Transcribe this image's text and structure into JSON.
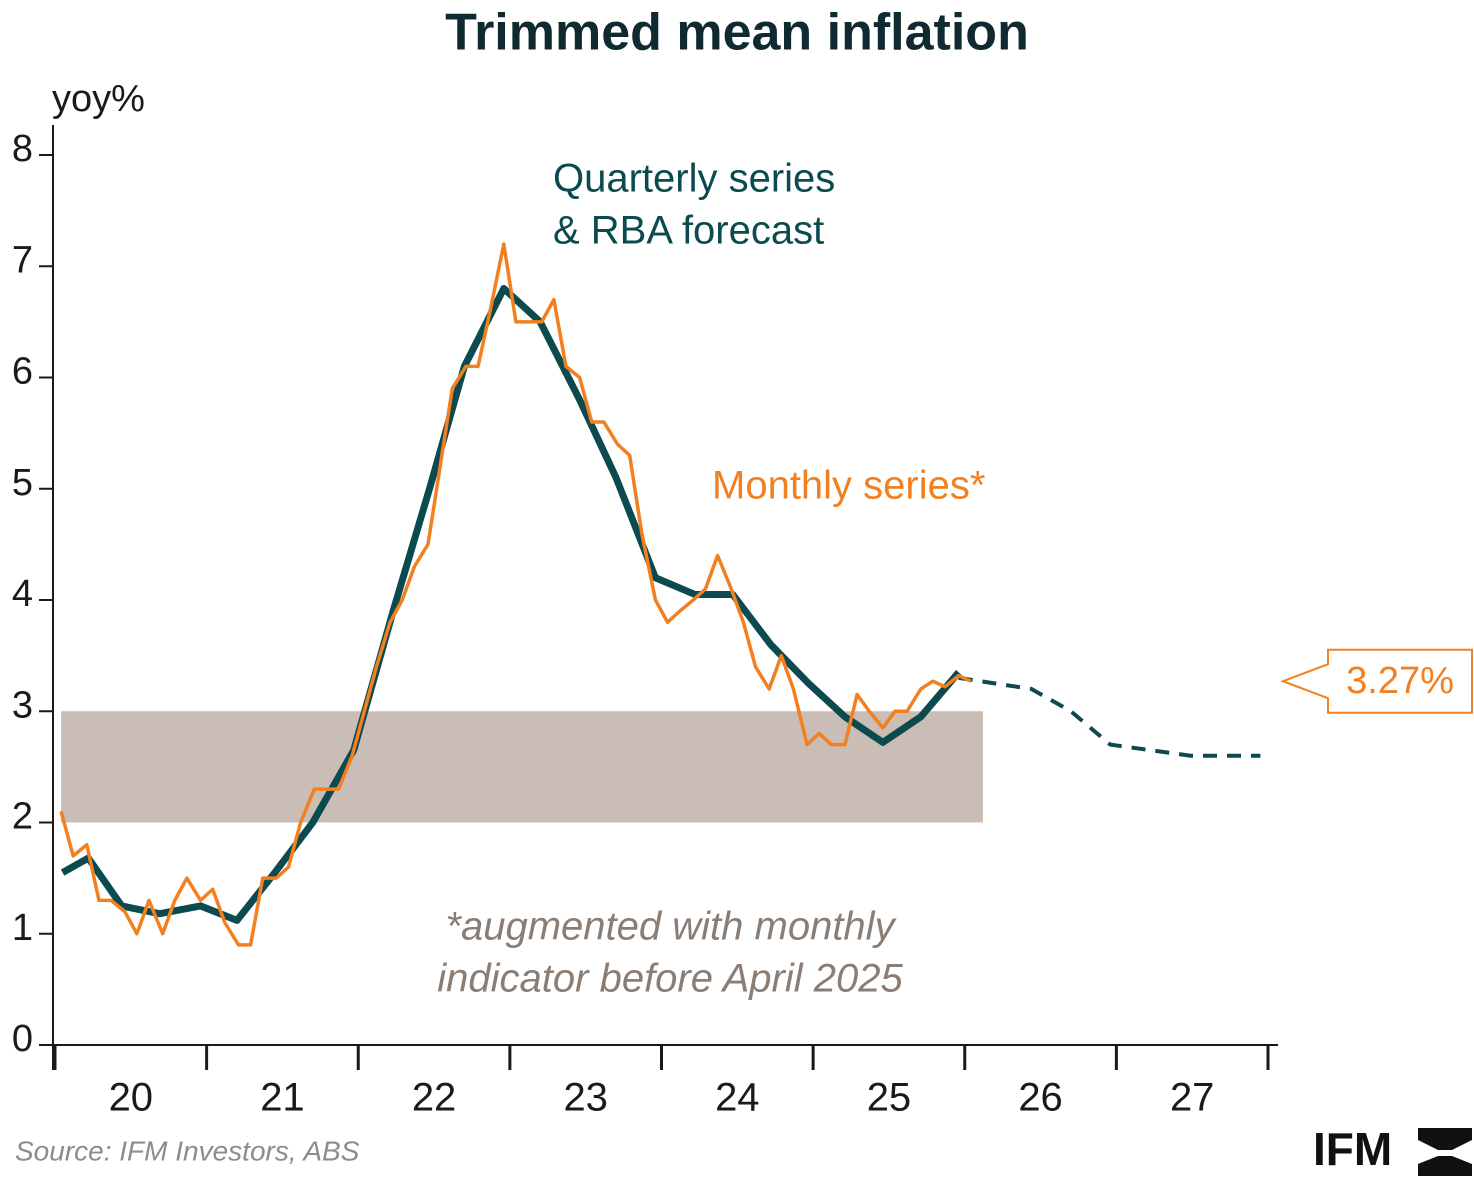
{
  "chart_data": {
    "type": "line",
    "title": "Trimmed mean inflation",
    "y_label": "yoy%",
    "source": "Source: IFM Investors, ABS",
    "logo": "IFM",
    "xlim": [
      2020,
      2028
    ],
    "xticks": [
      2020,
      2021,
      2022,
      2023,
      2024,
      2025,
      2026,
      2027,
      2028
    ],
    "year_labels": [
      {
        "value": 2020.5,
        "label": "20"
      },
      {
        "value": 2021.5,
        "label": "21"
      },
      {
        "value": 2022.5,
        "label": "22"
      },
      {
        "value": 2023.5,
        "label": "23"
      },
      {
        "value": 2024.5,
        "label": "24"
      },
      {
        "value": 2025.5,
        "label": "25"
      },
      {
        "value": 2026.5,
        "label": "26"
      },
      {
        "value": 2027.5,
        "label": "27"
      }
    ],
    "ylim": [
      0,
      8
    ],
    "yticks": [
      0,
      1,
      2,
      3,
      4,
      5,
      6,
      7,
      8
    ],
    "target_band": {
      "x": [
        2020.04,
        2026.12
      ],
      "y": [
        2,
        3
      ],
      "color": "#c9bdb5"
    },
    "series": [
      {
        "color": "#0b4a4e",
        "width": 7,
        "dashed": false,
        "x": [
          2020.05,
          2020.22,
          2020.44,
          2020.69,
          2020.96,
          2021.2,
          2021.45,
          2021.7,
          2021.97,
          2022.23,
          2022.47,
          2022.7,
          2022.96,
          2023.2,
          2023.46,
          2023.7,
          2023.96,
          2024.22,
          2024.47,
          2024.72,
          2024.97,
          2025.21,
          2025.46,
          2025.71,
          2025.96
        ],
        "values": [
          1.55,
          1.68,
          1.25,
          1.18,
          1.25,
          1.12,
          1.55,
          2.0,
          2.65,
          3.9,
          5.0,
          6.1,
          6.8,
          6.5,
          5.8,
          5.1,
          4.2,
          4.05,
          4.05,
          3.6,
          3.25,
          2.95,
          2.72,
          2.95,
          3.35
        ]
      },
      {
        "color": "#0b4a4e",
        "width": 4,
        "dashed": true,
        "x": [
          2025.96,
          2026.44,
          2026.7,
          2026.96,
          2027.49,
          2027.95
        ],
        "values": [
          3.3,
          3.2,
          3.0,
          2.7,
          2.6,
          2.6
        ]
      },
      {
        "color": "#f28021",
        "width": 3.5,
        "dashed": false,
        "x": [
          2020.04,
          2020.12,
          2020.21,
          2020.29,
          2020.37,
          2020.46,
          2020.54,
          2020.62,
          2020.71,
          2020.79,
          2020.87,
          2020.96,
          2021.04,
          2021.12,
          2021.21,
          2021.29,
          2021.37,
          2021.46,
          2021.54,
          2021.62,
          2021.71,
          2021.79,
          2021.87,
          2021.96,
          2022.04,
          2022.12,
          2022.21,
          2022.29,
          2022.37,
          2022.46,
          2022.54,
          2022.62,
          2022.71,
          2022.79,
          2022.87,
          2022.96,
          2023.04,
          2023.12,
          2023.21,
          2023.29,
          2023.37,
          2023.46,
          2023.54,
          2023.62,
          2023.71,
          2023.79,
          2023.87,
          2023.96,
          2024.04,
          2024.12,
          2024.21,
          2024.29,
          2024.37,
          2024.46,
          2024.54,
          2024.62,
          2024.71,
          2024.79,
          2024.87,
          2024.96,
          2025.04,
          2025.12,
          2025.21,
          2025.29,
          2025.37,
          2025.46,
          2025.54,
          2025.62,
          2025.71,
          2025.79,
          2025.87,
          2025.96,
          2026.04
        ],
        "values": [
          2.1,
          1.7,
          1.8,
          1.3,
          1.3,
          1.2,
          1.0,
          1.3,
          1.0,
          1.3,
          1.5,
          1.3,
          1.4,
          1.1,
          0.9,
          0.9,
          1.5,
          1.5,
          1.6,
          2.0,
          2.3,
          2.3,
          2.3,
          2.6,
          3.0,
          3.4,
          3.8,
          4.0,
          4.3,
          4.5,
          5.2,
          5.9,
          6.1,
          6.1,
          6.6,
          7.2,
          6.5,
          6.5,
          6.5,
          6.7,
          6.1,
          6.0,
          5.6,
          5.6,
          5.4,
          5.3,
          4.6,
          4.0,
          3.8,
          3.9,
          4.0,
          4.1,
          4.4,
          4.1,
          3.8,
          3.4,
          3.2,
          3.5,
          3.2,
          2.7,
          2.8,
          2.7,
          2.7,
          3.15,
          3.0,
          2.85,
          3.0,
          3.0,
          3.2,
          3.27,
          3.22,
          3.32,
          3.27
        ],
        "value_labels": [
          null,
          null,
          null,
          null,
          null,
          null,
          null,
          null,
          null,
          null,
          null,
          null,
          null,
          null,
          null,
          null,
          null,
          null,
          null,
          null,
          null,
          null,
          null,
          null,
          null,
          null,
          null,
          null,
          null,
          null,
          null,
          null,
          null,
          null,
          null,
          null,
          null,
          null,
          null,
          null,
          null,
          null,
          null,
          null,
          null,
          null,
          null,
          null,
          null,
          null,
          null,
          null,
          null,
          null,
          null,
          null,
          null,
          null,
          null,
          null,
          null,
          null,
          null,
          null,
          null,
          null,
          null,
          null,
          null,
          null,
          null,
          null,
          "3.27%"
        ]
      }
    ],
    "annotations": [
      {
        "lines": [
          "Quarterly series",
          "& RBA forecast"
        ],
        "color": "#0b4a4e",
        "italic": false
      },
      {
        "lines": [
          "Monthly series*"
        ],
        "color": "#f28021",
        "italic": false
      },
      {
        "lines": [
          "*augmented with monthly",
          "indicator before April 2025"
        ],
        "color": "#8a7d74",
        "italic": true
      }
    ]
  }
}
